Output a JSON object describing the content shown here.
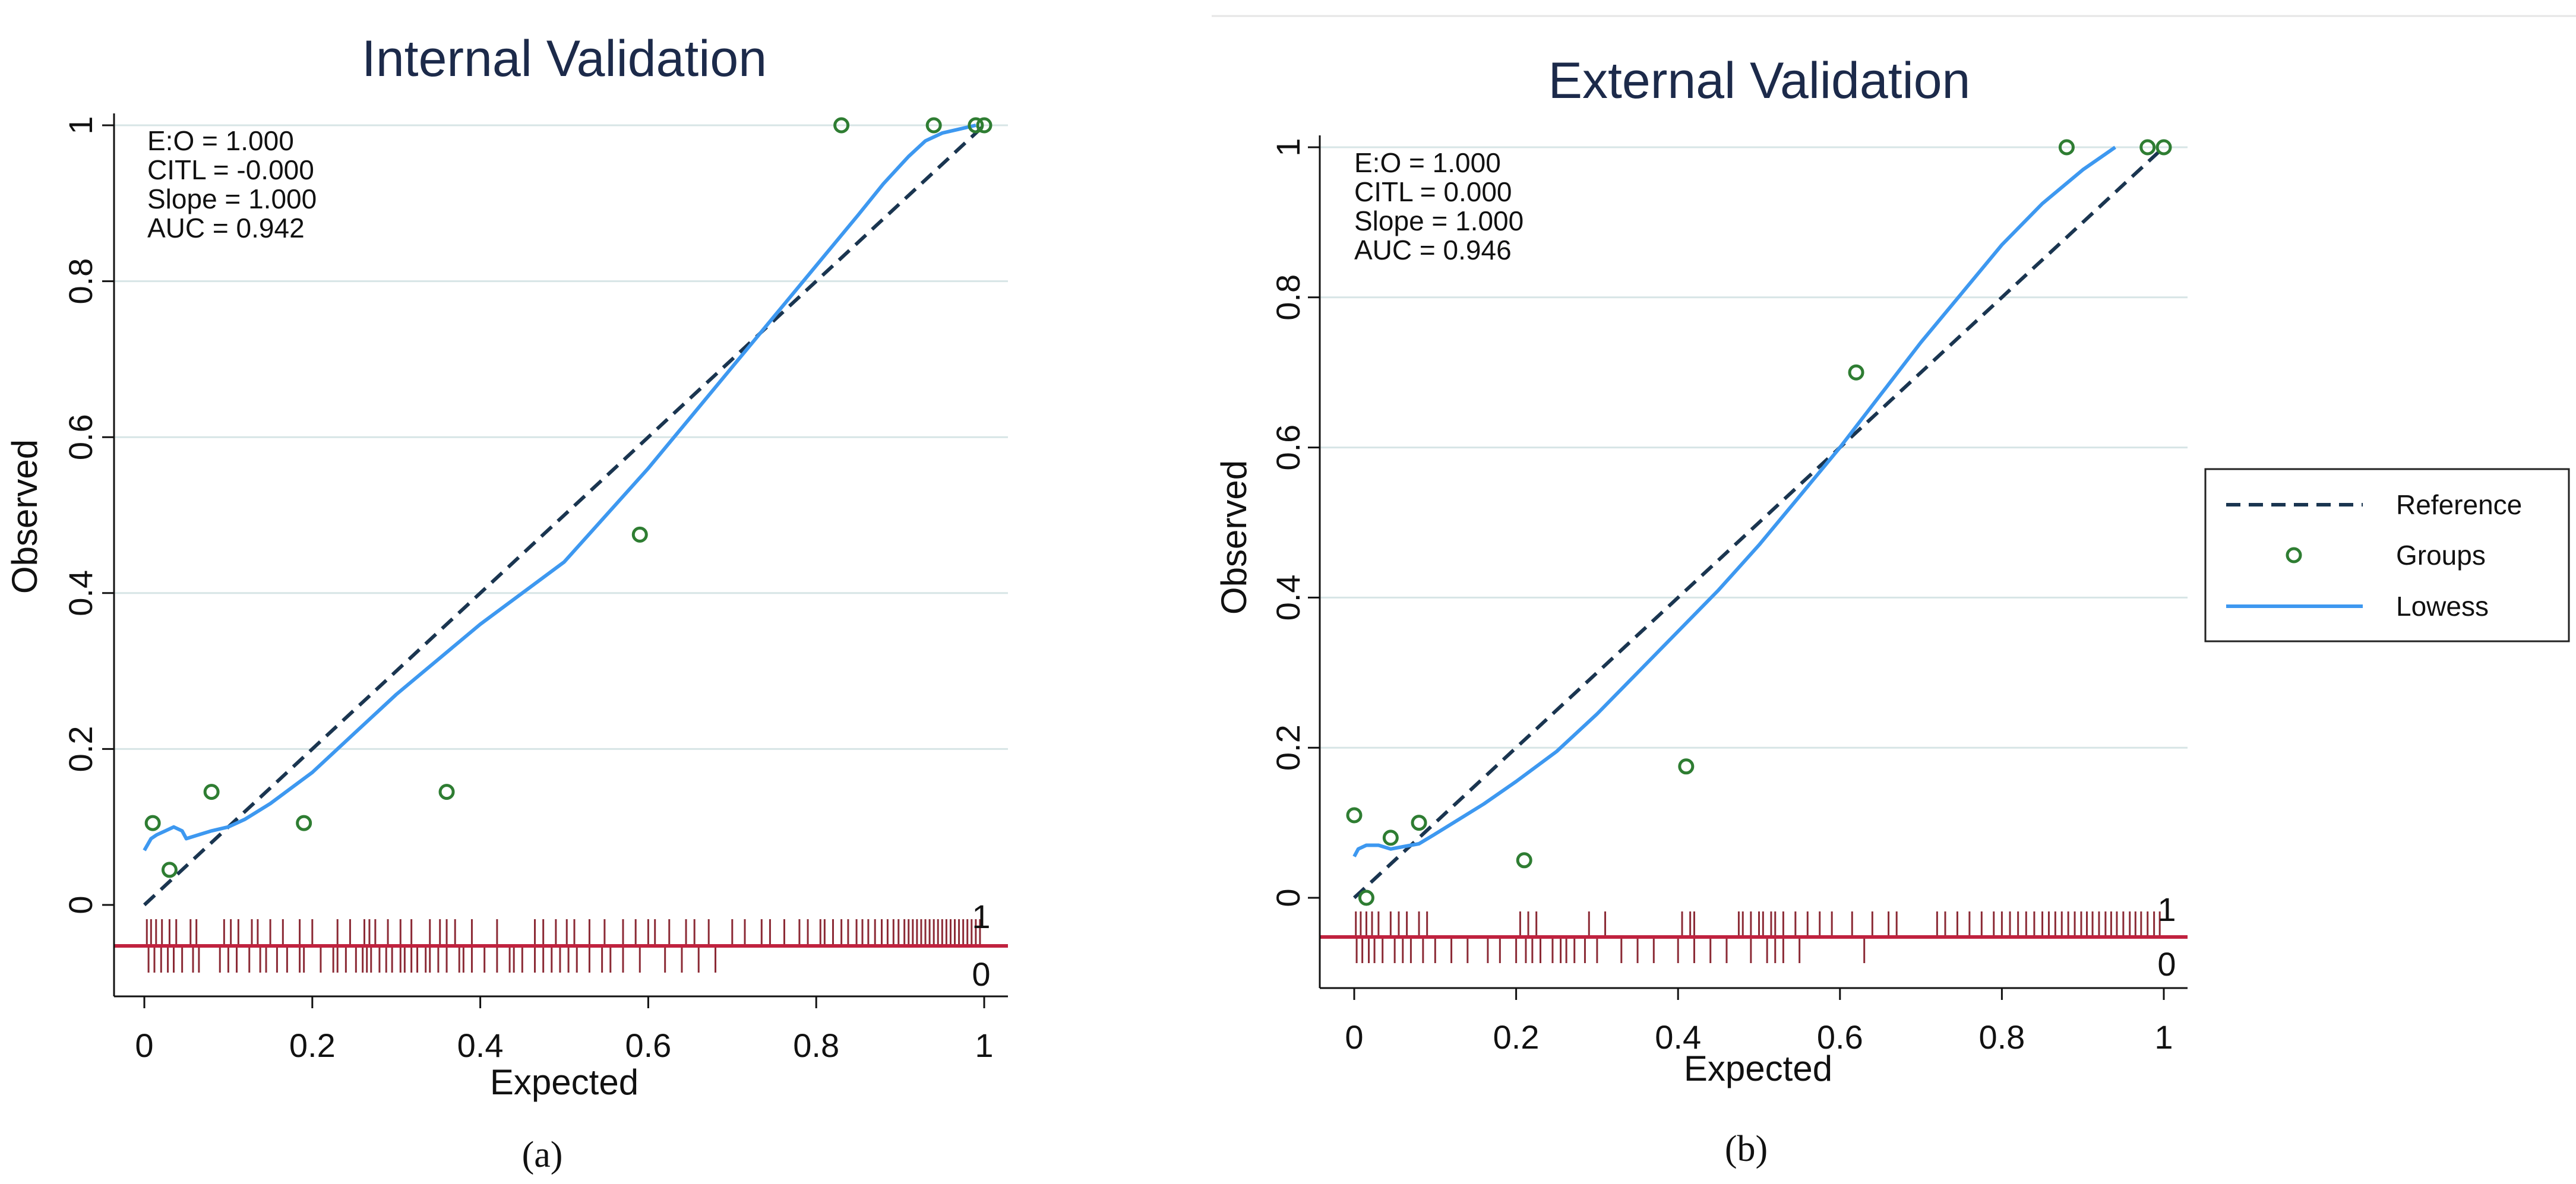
{
  "panels": [
    {
      "id": "internal",
      "caption": "(a)",
      "chart_data": {
        "type": "scatter",
        "title": "Internal Validation",
        "xlabel": "Expected",
        "ylabel": "Observed",
        "xlim": [
          0,
          1
        ],
        "ylim": [
          -0.1,
          1.02
        ],
        "xticks": [
          0,
          0.2,
          0.4,
          0.6,
          0.8,
          1
        ],
        "xtick_labels": [
          "0",
          "0.2",
          "0.4",
          "0.6",
          "0.8",
          "1"
        ],
        "yticks": [
          0,
          0.2,
          0.4,
          0.6,
          0.8,
          1
        ],
        "ytick_labels": [
          "0",
          "0.2",
          "0.4",
          "0.6",
          "0.8",
          "1"
        ],
        "grid": true,
        "stats": [
          "E:O = 1.000",
          "CITL = -0.000",
          "Slope = 1.000",
          "AUC = 0.942"
        ],
        "reference": [
          [
            0,
            0
          ],
          [
            1,
            1
          ]
        ],
        "groups": {
          "x": [
            0.01,
            0.03,
            0.08,
            0.19,
            0.36,
            0.59,
            0.83,
            0.94,
            0.99,
            1.0
          ],
          "y": [
            0.105,
            0.045,
            0.145,
            0.105,
            0.145,
            0.475,
            1.0,
            1.0,
            1.0,
            1.0
          ]
        },
        "lowess": {
          "x": [
            0.0,
            0.008,
            0.015,
            0.025,
            0.035,
            0.045,
            0.05,
            0.065,
            0.08,
            0.1,
            0.12,
            0.15,
            0.2,
            0.25,
            0.3,
            0.35,
            0.4,
            0.45,
            0.5,
            0.55,
            0.6,
            0.65,
            0.7,
            0.75,
            0.8,
            0.85,
            0.88,
            0.91,
            0.93,
            0.95,
            0.97,
            0.99
          ],
          "y": [
            0.07,
            0.085,
            0.09,
            0.095,
            0.1,
            0.095,
            0.085,
            0.09,
            0.095,
            0.1,
            0.11,
            0.13,
            0.17,
            0.22,
            0.27,
            0.315,
            0.36,
            0.4,
            0.44,
            0.5,
            0.56,
            0.625,
            0.69,
            0.755,
            0.82,
            0.885,
            0.925,
            0.96,
            0.98,
            0.99,
            0.995,
            1.0
          ]
        },
        "rug_label_event": "1",
        "rug_label_nonevent": "0",
        "rug_events": [
          0.003,
          0.008,
          0.014,
          0.021,
          0.03,
          0.038,
          0.055,
          0.062,
          0.095,
          0.103,
          0.112,
          0.128,
          0.135,
          0.15,
          0.165,
          0.185,
          0.2,
          0.23,
          0.245,
          0.262,
          0.268,
          0.275,
          0.29,
          0.305,
          0.318,
          0.34,
          0.352,
          0.36,
          0.37,
          0.39,
          0.42,
          0.465,
          0.475,
          0.49,
          0.503,
          0.512,
          0.53,
          0.548,
          0.57,
          0.585,
          0.6,
          0.608,
          0.625,
          0.645,
          0.655,
          0.672,
          0.7,
          0.715,
          0.735,
          0.745,
          0.762,
          0.78,
          0.79,
          0.805,
          0.81,
          0.82,
          0.83,
          0.838,
          0.848,
          0.855,
          0.862,
          0.87,
          0.878,
          0.885,
          0.892,
          0.898,
          0.905,
          0.91,
          0.915,
          0.92,
          0.925,
          0.93,
          0.935,
          0.94,
          0.945,
          0.95,
          0.955,
          0.96,
          0.965,
          0.97,
          0.975,
          0.98,
          0.985,
          0.99,
          0.995
        ],
        "rug_nonevents": [
          0.005,
          0.012,
          0.02,
          0.028,
          0.035,
          0.045,
          0.058,
          0.065,
          0.09,
          0.1,
          0.11,
          0.125,
          0.138,
          0.145,
          0.158,
          0.17,
          0.185,
          0.19,
          0.21,
          0.225,
          0.23,
          0.24,
          0.252,
          0.26,
          0.265,
          0.27,
          0.28,
          0.288,
          0.295,
          0.305,
          0.31,
          0.318,
          0.325,
          0.335,
          0.34,
          0.35,
          0.36,
          0.375,
          0.38,
          0.39,
          0.405,
          0.42,
          0.435,
          0.44,
          0.45,
          0.465,
          0.475,
          0.485,
          0.495,
          0.505,
          0.515,
          0.53,
          0.545,
          0.555,
          0.57,
          0.59,
          0.62,
          0.64,
          0.66,
          0.68
        ]
      }
    },
    {
      "id": "external",
      "caption": "(b)",
      "chart_data": {
        "type": "scatter",
        "title": "External Validation",
        "xlabel": "Expected",
        "ylabel": "Observed",
        "xlim": [
          0,
          1
        ],
        "ylim": [
          -0.1,
          1.02
        ],
        "xticks": [
          0,
          0.2,
          0.4,
          0.6,
          0.8,
          1
        ],
        "xtick_labels": [
          "0",
          "0.2",
          "0.4",
          "0.6",
          "0.8",
          "1"
        ],
        "yticks": [
          0,
          0.2,
          0.4,
          0.6,
          0.8,
          1
        ],
        "ytick_labels": [
          "0",
          "0.2",
          "0.4",
          "0.6",
          "0.8",
          "1"
        ],
        "grid": true,
        "stats": [
          "E:O = 1.000",
          "CITL = 0.000",
          "Slope = 1.000",
          "AUC = 0.946"
        ],
        "reference": [
          [
            0,
            0
          ],
          [
            1,
            1
          ]
        ],
        "groups": {
          "x": [
            0.0,
            0.015,
            0.045,
            0.08,
            0.21,
            0.41,
            0.62,
            0.88,
            0.98,
            1.0
          ],
          "y": [
            0.11,
            0.0,
            0.08,
            0.1,
            0.05,
            0.175,
            0.7,
            1.0,
            1.0,
            1.0
          ]
        },
        "lowess": {
          "x": [
            0.0,
            0.005,
            0.015,
            0.03,
            0.045,
            0.06,
            0.08,
            0.1,
            0.13,
            0.16,
            0.2,
            0.25,
            0.3,
            0.35,
            0.4,
            0.45,
            0.5,
            0.55,
            0.6,
            0.65,
            0.7,
            0.75,
            0.8,
            0.85,
            0.9,
            0.94
          ],
          "y": [
            0.055,
            0.065,
            0.07,
            0.07,
            0.065,
            0.068,
            0.072,
            0.085,
            0.105,
            0.125,
            0.155,
            0.195,
            0.245,
            0.3,
            0.355,
            0.41,
            0.47,
            0.535,
            0.6,
            0.67,
            0.74,
            0.805,
            0.87,
            0.925,
            0.97,
            1.0
          ]
        },
        "rug_label_event": "1",
        "rug_label_nonevent": "0",
        "rug_events": [
          0.002,
          0.008,
          0.015,
          0.022,
          0.03,
          0.045,
          0.055,
          0.065,
          0.08,
          0.09,
          0.205,
          0.215,
          0.225,
          0.29,
          0.31,
          0.405,
          0.415,
          0.42,
          0.475,
          0.48,
          0.49,
          0.5,
          0.505,
          0.515,
          0.52,
          0.53,
          0.545,
          0.56,
          0.575,
          0.59,
          0.615,
          0.64,
          0.66,
          0.67,
          0.72,
          0.73,
          0.745,
          0.76,
          0.775,
          0.79,
          0.8,
          0.81,
          0.82,
          0.83,
          0.84,
          0.85,
          0.858,
          0.866,
          0.874,
          0.882,
          0.89,
          0.898,
          0.905,
          0.912,
          0.92,
          0.928,
          0.935,
          0.942,
          0.95,
          0.958,
          0.965,
          0.972,
          0.98,
          0.988,
          0.995
        ],
        "rug_nonevents": [
          0.003,
          0.01,
          0.018,
          0.025,
          0.035,
          0.05,
          0.06,
          0.07,
          0.085,
          0.1,
          0.12,
          0.14,
          0.165,
          0.18,
          0.2,
          0.212,
          0.22,
          0.23,
          0.245,
          0.255,
          0.262,
          0.272,
          0.285,
          0.3,
          0.33,
          0.35,
          0.37,
          0.4,
          0.42,
          0.44,
          0.46,
          0.49,
          0.51,
          0.52,
          0.53,
          0.55,
          0.63
        ]
      }
    }
  ],
  "legend": {
    "items": [
      {
        "key": "reference",
        "label": "Reference"
      },
      {
        "key": "groups",
        "label": "Groups"
      },
      {
        "key": "lowess",
        "label": "Lowess"
      }
    ]
  },
  "colors": {
    "reference": "#1a3550",
    "groups": "#2e7d32",
    "lowess": "#3d98f0",
    "rug": "#8b2a35",
    "baseline": "#c0223f",
    "grid": "#d7e5e6",
    "axis": "#111111",
    "text": "#111111",
    "title": "#1c2a4a"
  }
}
